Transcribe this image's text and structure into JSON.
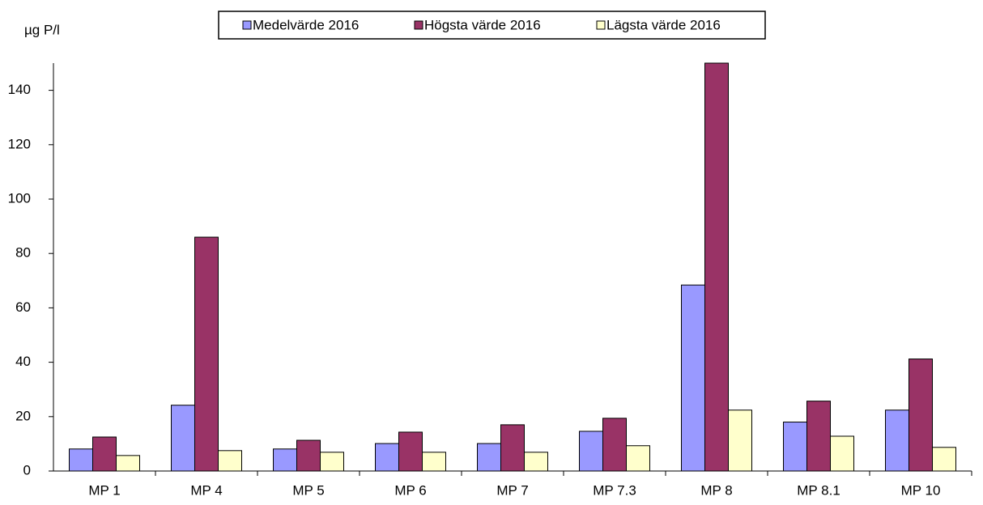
{
  "chart_data": {
    "type": "bar",
    "y_label": "µg P/l",
    "categories": [
      "MP 1",
      "MP 4",
      "MP 5",
      "MP 6",
      "MP 7",
      "MP 7.3",
      "MP 8",
      "MP 8.1",
      "MP 10"
    ],
    "series": [
      {
        "name": "Medelvärde 2016",
        "color": "#9999ff",
        "values": [
          8.1,
          24.2,
          8.1,
          10.1,
          10.1,
          14.6,
          68.4,
          18,
          22.4
        ]
      },
      {
        "name": "Högsta värde 2016",
        "color": "#993366",
        "values": [
          12.5,
          86,
          11.3,
          14.3,
          17,
          19.4,
          150,
          25.7,
          41.2
        ]
      },
      {
        "name": "Lägsta värde 2016",
        "color": "#ffffcc",
        "values": [
          5.7,
          7.5,
          6.9,
          6.9,
          6.9,
          9.3,
          22.4,
          12.8,
          8.7
        ]
      }
    ],
    "ylim": [
      0,
      150
    ],
    "yticks": [
      0,
      20,
      40,
      60,
      80,
      100,
      120,
      140
    ],
    "grid": false,
    "legend": "top"
  }
}
